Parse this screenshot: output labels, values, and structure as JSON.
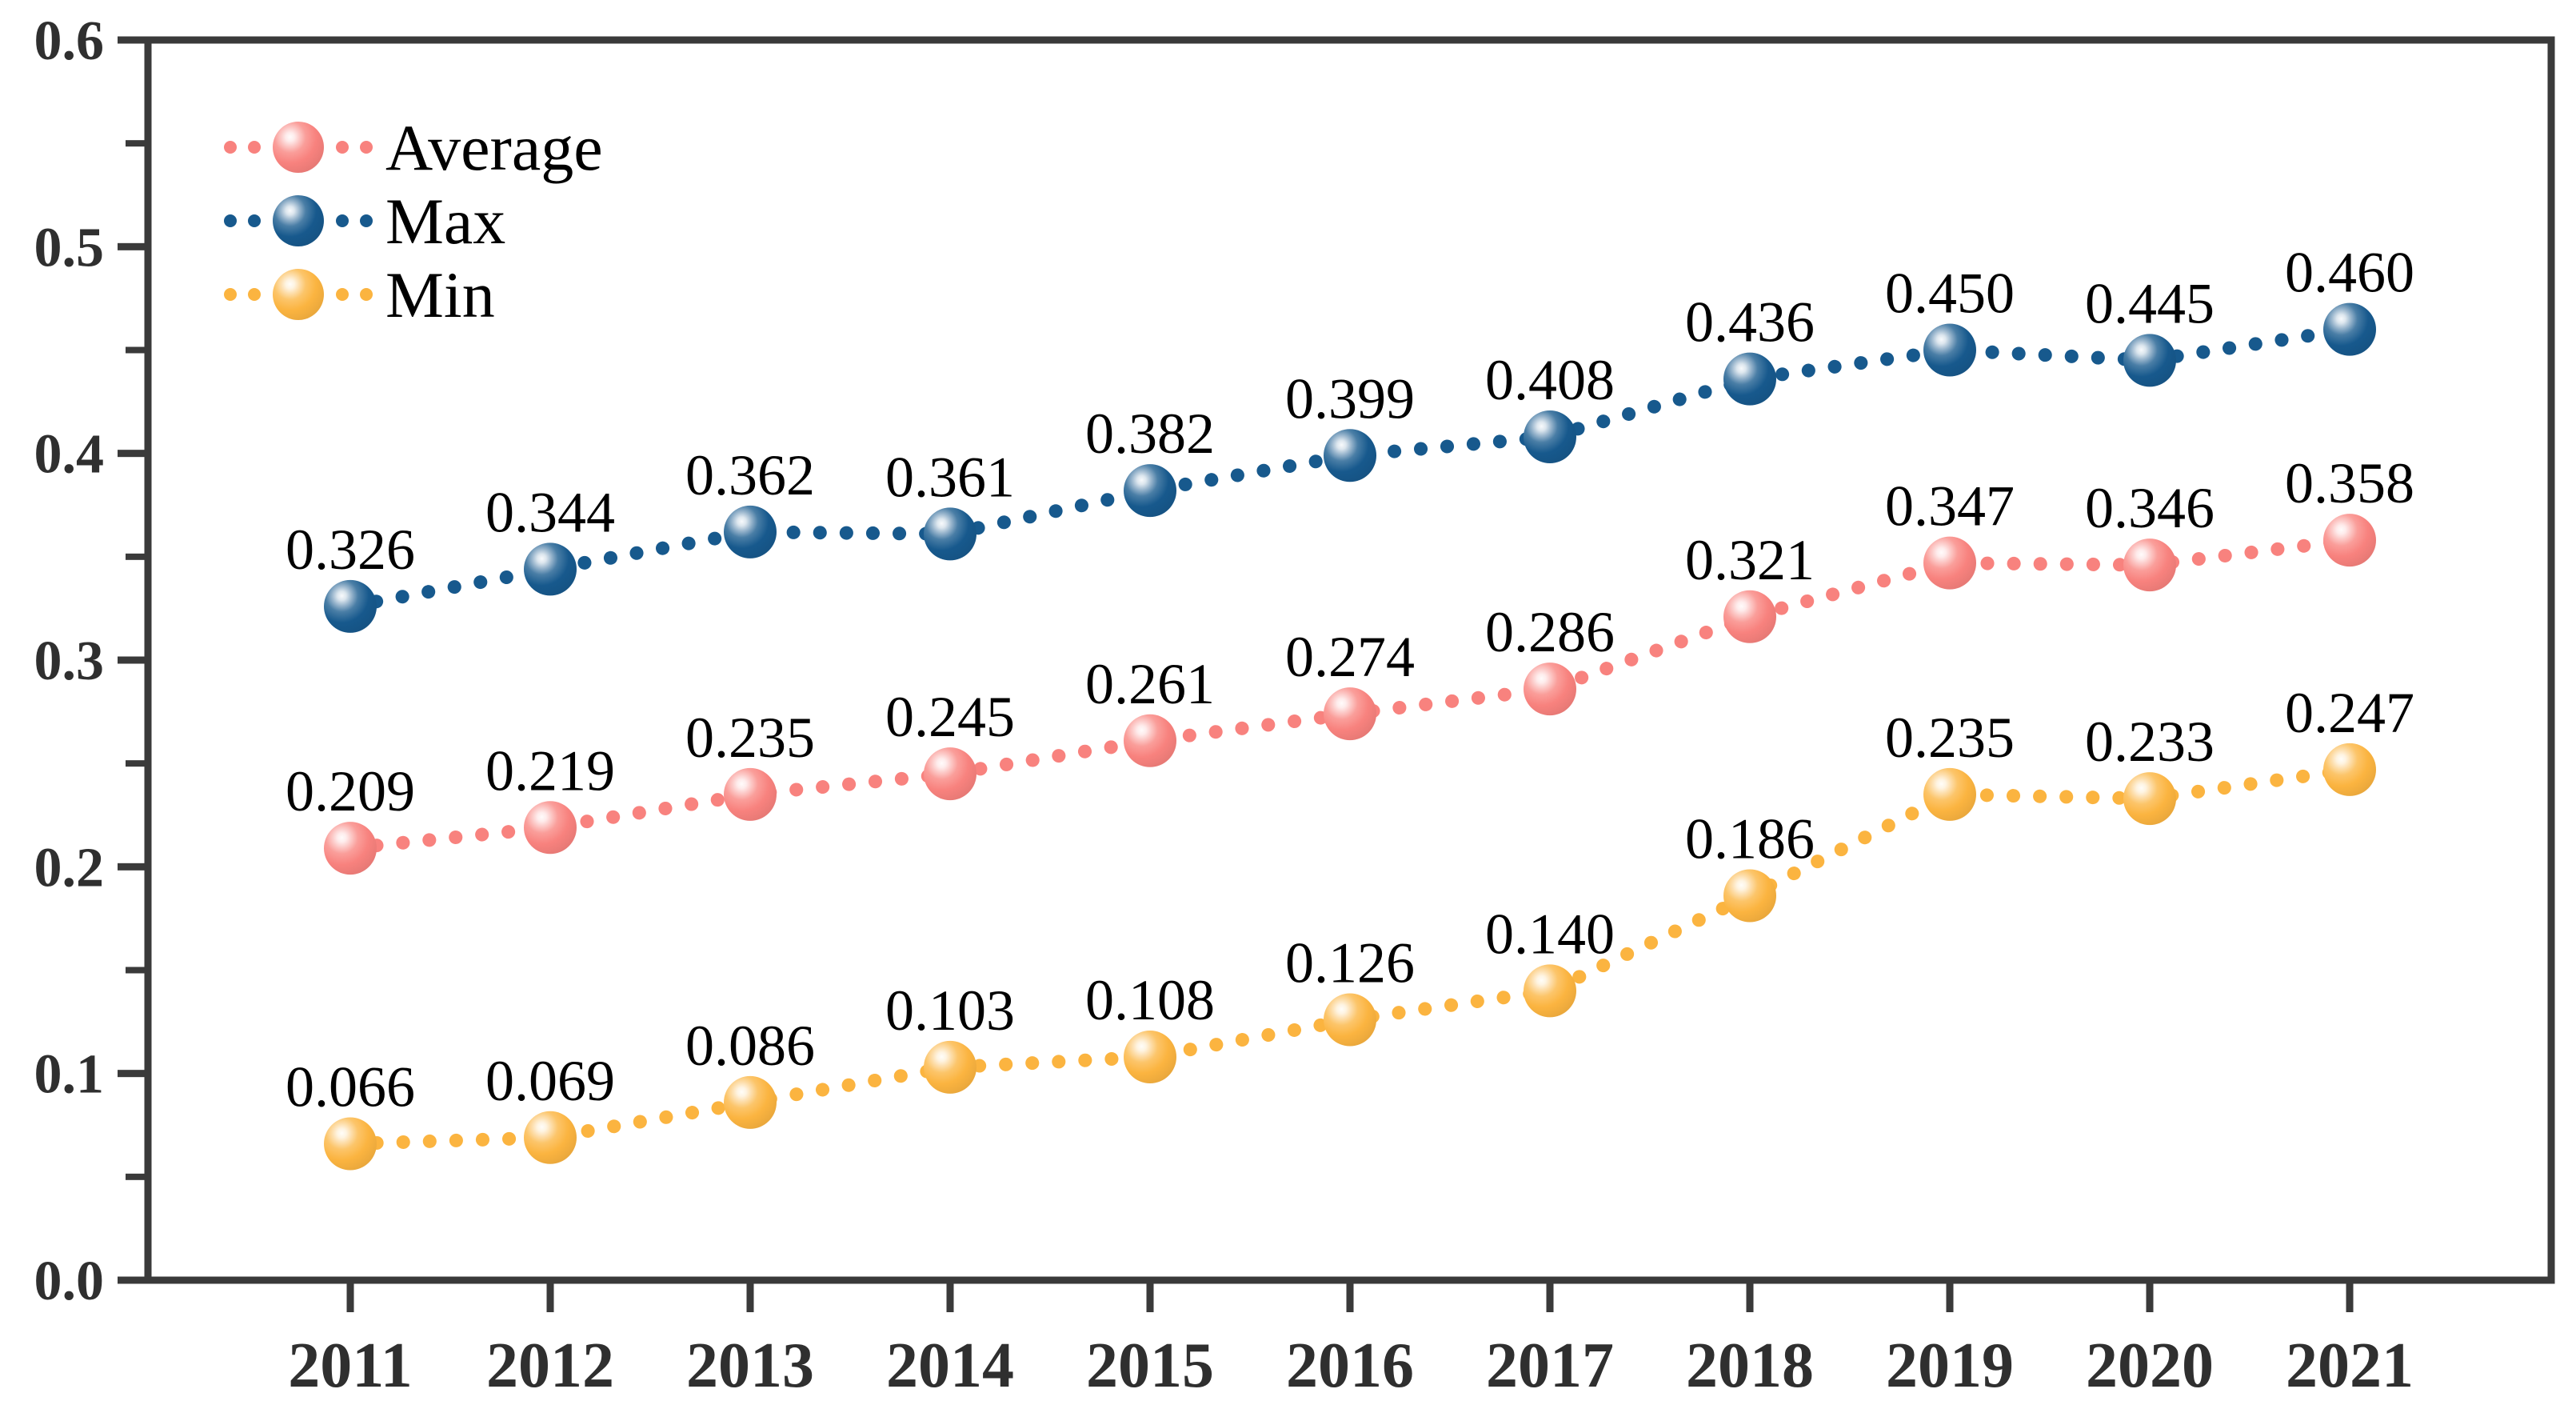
{
  "chart_data": {
    "type": "line",
    "title": "",
    "xlabel": "",
    "ylabel": "",
    "categories": [
      "2011",
      "2012",
      "2013",
      "2014",
      "2015",
      "2016",
      "2017",
      "2018",
      "2019",
      "2020",
      "2021"
    ],
    "series": [
      {
        "name": "Average",
        "color": "#F8827E",
        "values": [
          0.209,
          0.219,
          0.235,
          0.245,
          0.261,
          0.274,
          0.286,
          0.321,
          0.347,
          0.346,
          0.358
        ],
        "labels": [
          "0.209",
          "0.219",
          "0.235",
          "0.245",
          "0.261",
          "0.274",
          "0.286",
          "0.321",
          "0.347",
          "0.346",
          "0.358"
        ]
      },
      {
        "name": "Max",
        "color": "#17598D",
        "values": [
          0.326,
          0.344,
          0.362,
          0.361,
          0.382,
          0.399,
          0.408,
          0.436,
          0.45,
          0.445,
          0.46
        ],
        "labels": [
          "0.326",
          "0.344",
          "0.362",
          "0.361",
          "0.382",
          "0.399",
          "0.408",
          "0.436",
          "0.450",
          "0.445",
          "0.460"
        ]
      },
      {
        "name": "Min",
        "color": "#FBB440",
        "values": [
          0.066,
          0.069,
          0.086,
          0.103,
          0.108,
          0.126,
          0.14,
          0.186,
          0.235,
          0.233,
          0.247
        ],
        "labels": [
          "0.066",
          "0.069",
          "0.086",
          "0.103",
          "0.108",
          "0.126",
          "0.140",
          "0.186",
          "0.235",
          "0.233",
          "0.247"
        ]
      }
    ],
    "ylim": [
      0.0,
      0.6
    ],
    "ytick_labels": [
      "0.0",
      "0.1",
      "0.2",
      "0.3",
      "0.4",
      "0.5",
      "0.6"
    ],
    "minor_tick_step": 0.05,
    "grid": false,
    "legend": {
      "position": "top-left"
    },
    "line_style": "dotted",
    "marker_style": "glossy-sphere",
    "colors": {
      "axis": "#3A3A3A",
      "tick_label": "#2F2F2F",
      "value_label": "#000000",
      "legend_text": "#000000",
      "background": "#FFFFFF"
    }
  }
}
